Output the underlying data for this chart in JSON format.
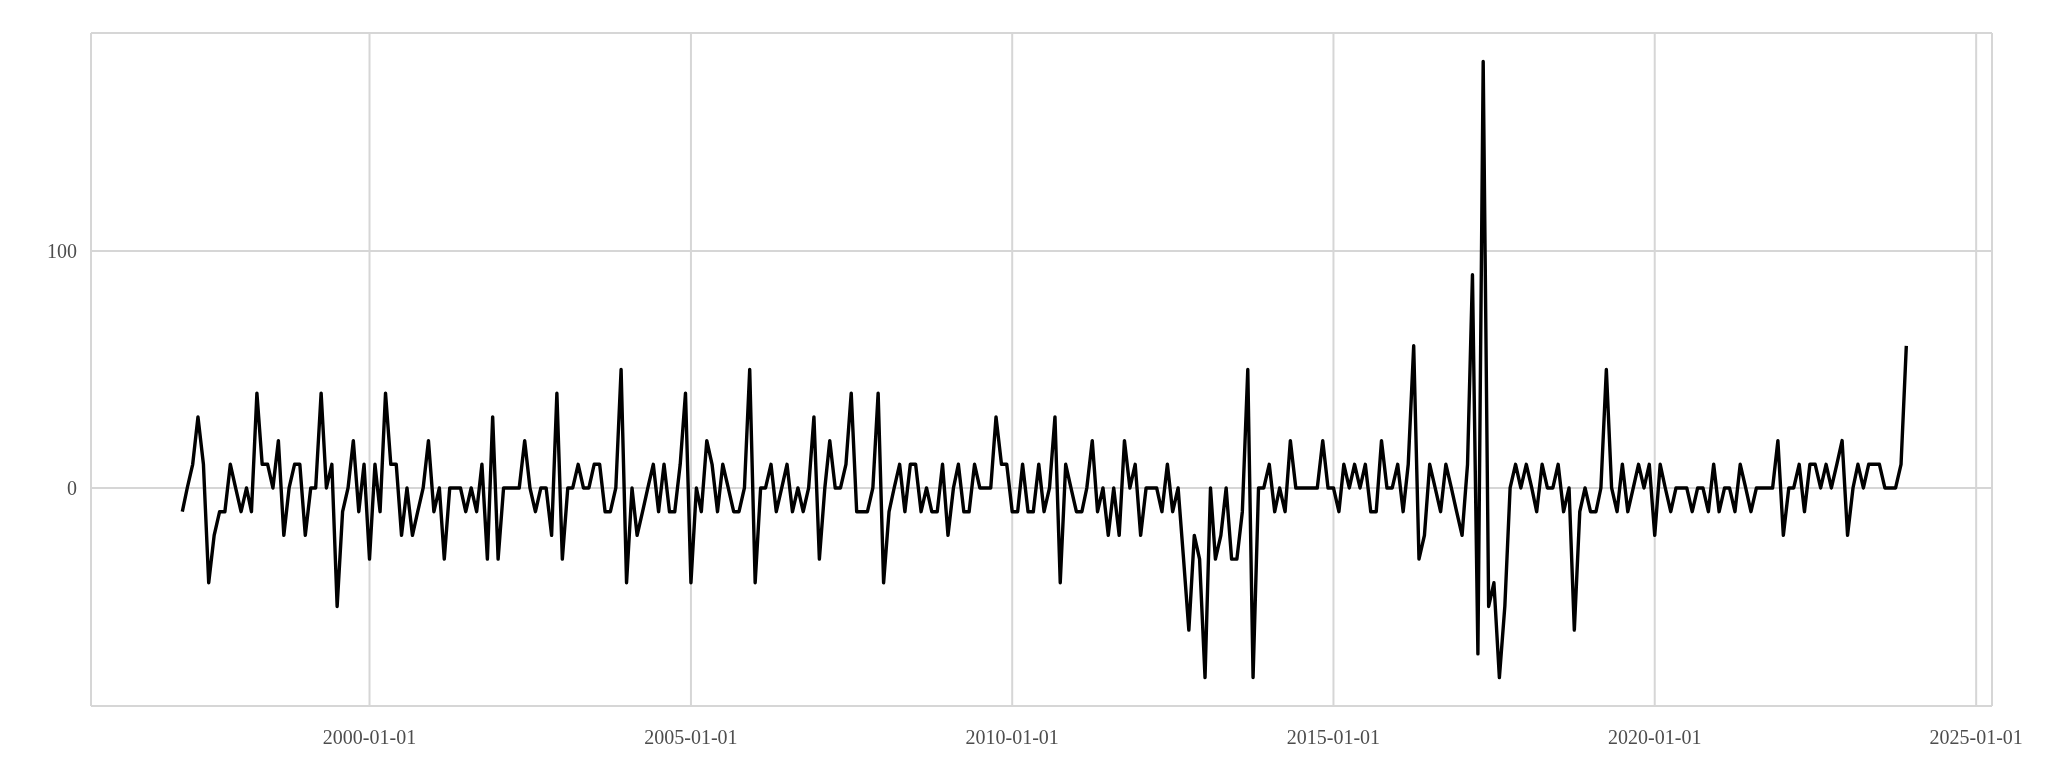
{
  "chart_data": {
    "type": "line",
    "marker": "none",
    "line_style": "solid",
    "grid": true,
    "xlim": [
      "1995-09-01",
      "2025-04-01"
    ],
    "xticks": [
      "2000-01-01",
      "2005-01-01",
      "2010-01-01",
      "2015-01-01",
      "2020-01-01",
      "2025-01-01"
    ],
    "ylim": [
      -92,
      192
    ],
    "yticks": [
      0,
      100
    ],
    "x": [
      "1997-02",
      "1997-03",
      "1997-04",
      "1997-05",
      "1997-06",
      "1997-07",
      "1997-08",
      "1997-09",
      "1997-10",
      "1997-11",
      "1997-12",
      "1998-01",
      "1998-02",
      "1998-03",
      "1998-04",
      "1998-05",
      "1998-06",
      "1998-07",
      "1998-08",
      "1998-09",
      "1998-10",
      "1998-11",
      "1998-12",
      "1999-01",
      "1999-02",
      "1999-03",
      "1999-04",
      "1999-05",
      "1999-06",
      "1999-07",
      "1999-08",
      "1999-09",
      "1999-10",
      "1999-11",
      "1999-12",
      "2000-01",
      "2000-02",
      "2000-03",
      "2000-04",
      "2000-05",
      "2000-06",
      "2000-07",
      "2000-08",
      "2000-09",
      "2000-10",
      "2000-11",
      "2000-12",
      "2001-01",
      "2001-02",
      "2001-03",
      "2001-04",
      "2001-05",
      "2001-06",
      "2001-07",
      "2001-08",
      "2001-09",
      "2001-10",
      "2001-11",
      "2001-12",
      "2002-01",
      "2002-02",
      "2002-03",
      "2002-04",
      "2002-05",
      "2002-06",
      "2002-07",
      "2002-08",
      "2002-09",
      "2002-10",
      "2002-11",
      "2002-12",
      "2003-01",
      "2003-02",
      "2003-03",
      "2003-04",
      "2003-05",
      "2003-06",
      "2003-07",
      "2003-08",
      "2003-09",
      "2003-10",
      "2003-11",
      "2003-12",
      "2004-01",
      "2004-02",
      "2004-03",
      "2004-04",
      "2004-05",
      "2004-06",
      "2004-07",
      "2004-08",
      "2004-09",
      "2004-10",
      "2004-11",
      "2004-12",
      "2005-01",
      "2005-02",
      "2005-03",
      "2005-04",
      "2005-05",
      "2005-06",
      "2005-07",
      "2005-08",
      "2005-09",
      "2005-10",
      "2005-11",
      "2005-12",
      "2006-01",
      "2006-02",
      "2006-03",
      "2006-04",
      "2006-05",
      "2006-06",
      "2006-07",
      "2006-08",
      "2006-09",
      "2006-10",
      "2006-11",
      "2006-12",
      "2007-01",
      "2007-02",
      "2007-03",
      "2007-04",
      "2007-05",
      "2007-06",
      "2007-07",
      "2007-08",
      "2007-09",
      "2007-10",
      "2007-11",
      "2007-12",
      "2008-01",
      "2008-02",
      "2008-03",
      "2008-04",
      "2008-05",
      "2008-06",
      "2008-07",
      "2008-08",
      "2008-09",
      "2008-10",
      "2008-11",
      "2008-12",
      "2009-01",
      "2009-02",
      "2009-03",
      "2009-04",
      "2009-05",
      "2009-06",
      "2009-07",
      "2009-08",
      "2009-09",
      "2009-10",
      "2009-11",
      "2009-12",
      "2010-01",
      "2010-02",
      "2010-03",
      "2010-04",
      "2010-05",
      "2010-06",
      "2010-07",
      "2010-08",
      "2010-09",
      "2010-10",
      "2010-11",
      "2010-12",
      "2011-01",
      "2011-02",
      "2011-03",
      "2011-04",
      "2011-05",
      "2011-06",
      "2011-07",
      "2011-08",
      "2011-09",
      "2011-10",
      "2011-11",
      "2011-12",
      "2012-01",
      "2012-02",
      "2012-03",
      "2012-04",
      "2012-05",
      "2012-06",
      "2012-07",
      "2012-08",
      "2012-09",
      "2012-10",
      "2012-11",
      "2012-12",
      "2013-01",
      "2013-02",
      "2013-03",
      "2013-04",
      "2013-05",
      "2013-06",
      "2013-07",
      "2013-08",
      "2013-09",
      "2013-10",
      "2013-11",
      "2013-12",
      "2014-01",
      "2014-02",
      "2014-03",
      "2014-04",
      "2014-05",
      "2014-06",
      "2014-07",
      "2014-08",
      "2014-09",
      "2014-10",
      "2014-11",
      "2014-12",
      "2015-01",
      "2015-02",
      "2015-03",
      "2015-04",
      "2015-05",
      "2015-06",
      "2015-07",
      "2015-08",
      "2015-09",
      "2015-10",
      "2015-11",
      "2015-12",
      "2016-01",
      "2016-02",
      "2016-03",
      "2016-04",
      "2016-05",
      "2016-06",
      "2016-07",
      "2016-08",
      "2016-09",
      "2016-10",
      "2016-11",
      "2016-12",
      "2017-01",
      "2017-02",
      "2017-03",
      "2017-04",
      "2017-05",
      "2017-06",
      "2017-07",
      "2017-08",
      "2017-09",
      "2017-10",
      "2017-11",
      "2017-12",
      "2018-01",
      "2018-02",
      "2018-03",
      "2018-04",
      "2018-05",
      "2018-06",
      "2018-07",
      "2018-08",
      "2018-09",
      "2018-10",
      "2018-11",
      "2018-12",
      "2019-01",
      "2019-02",
      "2019-03",
      "2019-04",
      "2019-05",
      "2019-06",
      "2019-07",
      "2019-08",
      "2019-09",
      "2019-10",
      "2019-11",
      "2019-12",
      "2020-01",
      "2020-02",
      "2020-03",
      "2020-04",
      "2020-05",
      "2020-06",
      "2020-07",
      "2020-08",
      "2020-09",
      "2020-10",
      "2020-11",
      "2020-12",
      "2021-01",
      "2021-02",
      "2021-03",
      "2021-04",
      "2021-05",
      "2021-06",
      "2021-07",
      "2021-08",
      "2021-09",
      "2021-10",
      "2021-11",
      "2021-12",
      "2022-01",
      "2022-02",
      "2022-03",
      "2022-04",
      "2022-05",
      "2022-06",
      "2022-07",
      "2022-08",
      "2022-09",
      "2022-10",
      "2022-11",
      "2022-12",
      "2023-01",
      "2023-02",
      "2023-03",
      "2023-04",
      "2023-05",
      "2023-06",
      "2023-07",
      "2023-08",
      "2023-09",
      "2023-10",
      "2023-11",
      "2023-12"
    ],
    "series": [
      {
        "color": "#000000",
        "values": [
          -10,
          0,
          10,
          30,
          10,
          -40,
          -20,
          -10,
          -10,
          10,
          0,
          -10,
          0,
          -10,
          40,
          10,
          10,
          0,
          20,
          -20,
          0,
          10,
          10,
          -20,
          0,
          0,
          40,
          0,
          10,
          -50,
          -10,
          0,
          20,
          -10,
          10,
          -30,
          10,
          -10,
          40,
          10,
          10,
          -20,
          0,
          -20,
          -10,
          0,
          20,
          -10,
          0,
          -30,
          0,
          0,
          0,
          -10,
          0,
          -10,
          10,
          -30,
          30,
          -30,
          0,
          0,
          0,
          0,
          20,
          0,
          -10,
          0,
          0,
          -20,
          40,
          -30,
          0,
          0,
          10,
          0,
          0,
          10,
          10,
          -10,
          -10,
          0,
          50,
          -40,
          0,
          -20,
          -10,
          0,
          10,
          -10,
          10,
          -10,
          -10,
          10,
          40,
          -40,
          0,
          -10,
          20,
          10,
          -10,
          10,
          0,
          -10,
          -10,
          0,
          50,
          -40,
          0,
          0,
          10,
          -10,
          0,
          10,
          -10,
          0,
          -10,
          0,
          30,
          -30,
          0,
          20,
          0,
          0,
          10,
          40,
          -10,
          -10,
          -10,
          0,
          40,
          -40,
          -10,
          0,
          10,
          -10,
          10,
          10,
          -10,
          0,
          -10,
          -10,
          10,
          -20,
          0,
          10,
          -10,
          -10,
          10,
          0,
          0,
          0,
          30,
          10,
          10,
          -10,
          -10,
          10,
          -10,
          -10,
          10,
          -10,
          0,
          30,
          -40,
          10,
          0,
          -10,
          -10,
          0,
          20,
          -10,
          0,
          -20,
          0,
          -20,
          20,
          0,
          10,
          -20,
          0,
          0,
          0,
          -10,
          10,
          -10,
          0,
          -30,
          -60,
          -20,
          -30,
          -80,
          0,
          -30,
          -20,
          0,
          -30,
          -30,
          -10,
          50,
          -80,
          0,
          0,
          10,
          -10,
          0,
          -10,
          20,
          0,
          0,
          0,
          0,
          0,
          20,
          0,
          0,
          -10,
          10,
          0,
          10,
          0,
          10,
          -10,
          -10,
          20,
          0,
          0,
          10,
          -10,
          10,
          60,
          -30,
          -20,
          10,
          0,
          -10,
          10,
          0,
          -10,
          -20,
          10,
          90,
          -70,
          180,
          -50,
          -40,
          -80,
          -50,
          0,
          10,
          0,
          10,
          0,
          -10,
          10,
          0,
          0,
          10,
          -10,
          0,
          -60,
          -10,
          0,
          -10,
          -10,
          0,
          50,
          0,
          -10,
          10,
          -10,
          0,
          10,
          0,
          10,
          -20,
          10,
          0,
          -10,
          0,
          0,
          0,
          -10,
          0,
          0,
          -10,
          10,
          -10,
          0,
          0,
          -10,
          10,
          0,
          -10,
          0,
          0,
          0,
          0,
          20,
          -20,
          0,
          0,
          10,
          -10,
          10,
          10,
          0,
          10,
          0,
          10,
          20,
          -20,
          0,
          10,
          0,
          10,
          10,
          10,
          0,
          0,
          0,
          10,
          60
        ]
      }
    ]
  }
}
